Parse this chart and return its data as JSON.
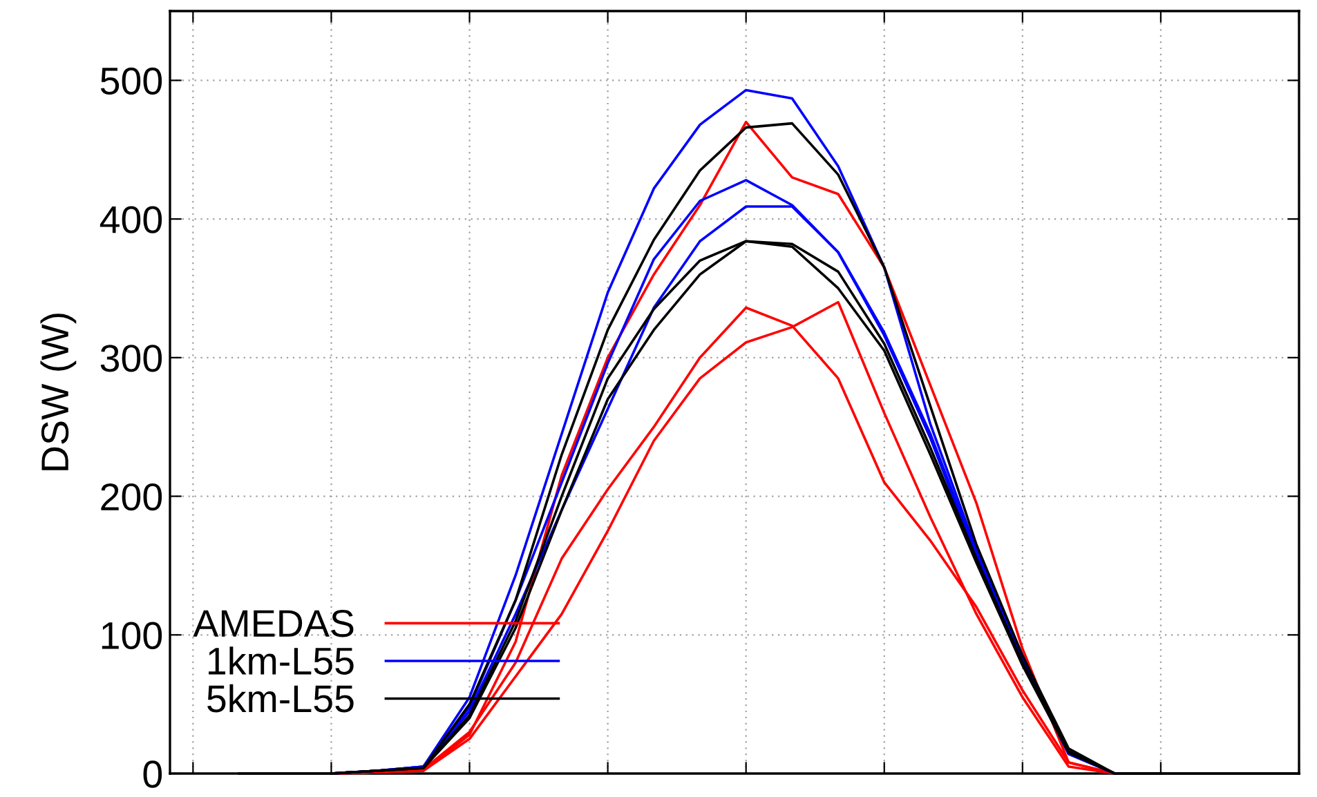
{
  "chart_data": {
    "type": "line",
    "ylabel": "DSW (W)",
    "categories": [
      null,
      null,
      null,
      null,
      null,
      null,
      null,
      null,
      null,
      null,
      null,
      null,
      null,
      null,
      null,
      null,
      null,
      null,
      null,
      null,
      null,
      null,
      null,
      null
    ],
    "ylim": [
      0,
      550
    ],
    "yticks": [
      0,
      100,
      200,
      300,
      400,
      500
    ],
    "grid": true,
    "legend": "bottom left",
    "tick_labels": "y",
    "series": [
      {
        "name": "AMEDAS",
        "color": "#ff0000",
        "values": [
          null,
          null,
          0,
          1,
          2,
          28,
          95,
          215,
          300,
          360,
          410,
          470,
          430,
          418,
          365,
          280,
          195,
          90,
          8,
          0,
          0,
          null,
          null,
          null
        ]
      },
      {
        "color": "#ff0000",
        "values": [
          null,
          null,
          0,
          1,
          3,
          30,
          80,
          155,
          205,
          250,
          300,
          336,
          323,
          285,
          210,
          168,
          120,
          60,
          8,
          0,
          0,
          null,
          null,
          null
        ]
      },
      {
        "color": "#ff0000",
        "values": [
          null,
          null,
          0,
          1,
          2,
          25,
          70,
          115,
          175,
          240,
          285,
          311,
          322,
          340,
          260,
          185,
          115,
          55,
          5,
          0,
          0,
          null,
          null,
          null
        ]
      },
      {
        "name": "1km-L55",
        "color": "#0000ff",
        "values": [
          null,
          null,
          0,
          2,
          5,
          55,
          143,
          245,
          347,
          422,
          468,
          493,
          487,
          438,
          365,
          252,
          161,
          85,
          15,
          0,
          0,
          null,
          null,
          null
        ]
      },
      {
        "color": "#0000ff",
        "values": [
          null,
          null,
          0,
          2,
          5,
          48,
          125,
          210,
          296,
          371,
          413,
          428,
          410,
          376,
          318,
          245,
          158,
          82,
          15,
          0,
          0,
          null,
          null,
          null
        ]
      },
      {
        "color": "#0000ff",
        "values": [
          null,
          null,
          0,
          2,
          5,
          45,
          115,
          190,
          263,
          336,
          384,
          409,
          409,
          376,
          316,
          242,
          156,
          80,
          14,
          0,
          0,
          null,
          null,
          null
        ]
      },
      {
        "name": "5km-L55",
        "color": "#000000",
        "values": [
          null,
          null,
          0,
          2,
          4,
          50,
          125,
          230,
          320,
          385,
          435,
          466,
          469,
          432,
          365,
          265,
          165,
          85,
          18,
          0,
          0,
          null,
          null,
          null
        ]
      },
      {
        "color": "#000000",
        "values": [
          null,
          null,
          0,
          2,
          4,
          42,
          110,
          200,
          285,
          335,
          370,
          384,
          382,
          362,
          310,
          235,
          155,
          80,
          16,
          0,
          0,
          null,
          null,
          null
        ]
      },
      {
        "color": "#000000",
        "values": [
          0,
          0,
          0,
          2,
          4,
          40,
          105,
          190,
          270,
          320,
          360,
          384,
          380,
          350,
          305,
          230,
          152,
          78,
          15,
          0,
          0,
          0,
          0,
          0
        ]
      }
    ]
  }
}
